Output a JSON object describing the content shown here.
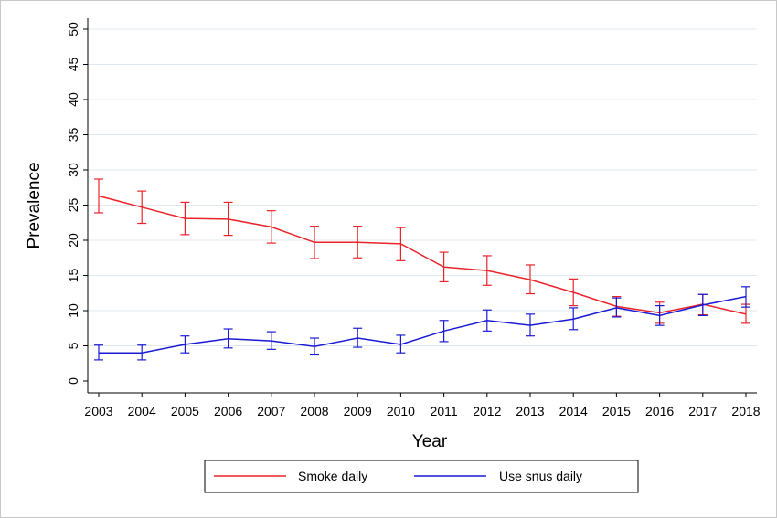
{
  "chart_data": {
    "type": "line",
    "xlabel": "Year",
    "ylabel": "Prevalence",
    "ylim": [
      0,
      50
    ],
    "yticks": [
      "0",
      "5",
      "10",
      "15",
      "20",
      "25",
      "30",
      "35",
      "40",
      "45",
      "50"
    ],
    "categories": [
      "2003",
      "2004",
      "2005",
      "2006",
      "2007",
      "2008",
      "2009",
      "2010",
      "2011",
      "2012",
      "2013",
      "2014",
      "2015",
      "2016",
      "2017",
      "2018"
    ],
    "grid": true,
    "legend_position": "bottom",
    "series": [
      {
        "name": "Smoke daily",
        "color": "#e8242a",
        "values": [
          26.3,
          24.7,
          23.1,
          23.0,
          21.9,
          19.7,
          19.7,
          19.5,
          16.2,
          15.7,
          14.4,
          12.6,
          10.6,
          9.7,
          10.9,
          9.5
        ],
        "lower": [
          23.9,
          22.4,
          20.8,
          20.7,
          19.6,
          17.4,
          17.5,
          17.1,
          14.1,
          13.6,
          12.4,
          10.7,
          9.2,
          8.2,
          9.4,
          8.2
        ],
        "upper": [
          28.7,
          27.0,
          25.4,
          25.4,
          24.2,
          22.0,
          22.0,
          21.8,
          18.3,
          17.8,
          16.5,
          14.5,
          12.0,
          11.2,
          12.3,
          10.9
        ]
      },
      {
        "name": "Use snus daily",
        "color": "#1a1ad4",
        "values": [
          4.0,
          4.0,
          5.2,
          6.0,
          5.7,
          4.9,
          6.1,
          5.2,
          7.1,
          8.6,
          7.9,
          8.8,
          10.4,
          9.3,
          10.8,
          12.0
        ],
        "lower": [
          3.0,
          3.0,
          4.0,
          4.7,
          4.5,
          3.7,
          4.8,
          4.0,
          5.6,
          7.1,
          6.4,
          7.3,
          9.1,
          7.9,
          9.3,
          10.5
        ],
        "upper": [
          5.1,
          5.1,
          6.4,
          7.4,
          7.0,
          6.1,
          7.5,
          6.5,
          8.6,
          10.1,
          9.5,
          10.4,
          11.8,
          10.7,
          12.3,
          13.4
        ]
      }
    ]
  }
}
